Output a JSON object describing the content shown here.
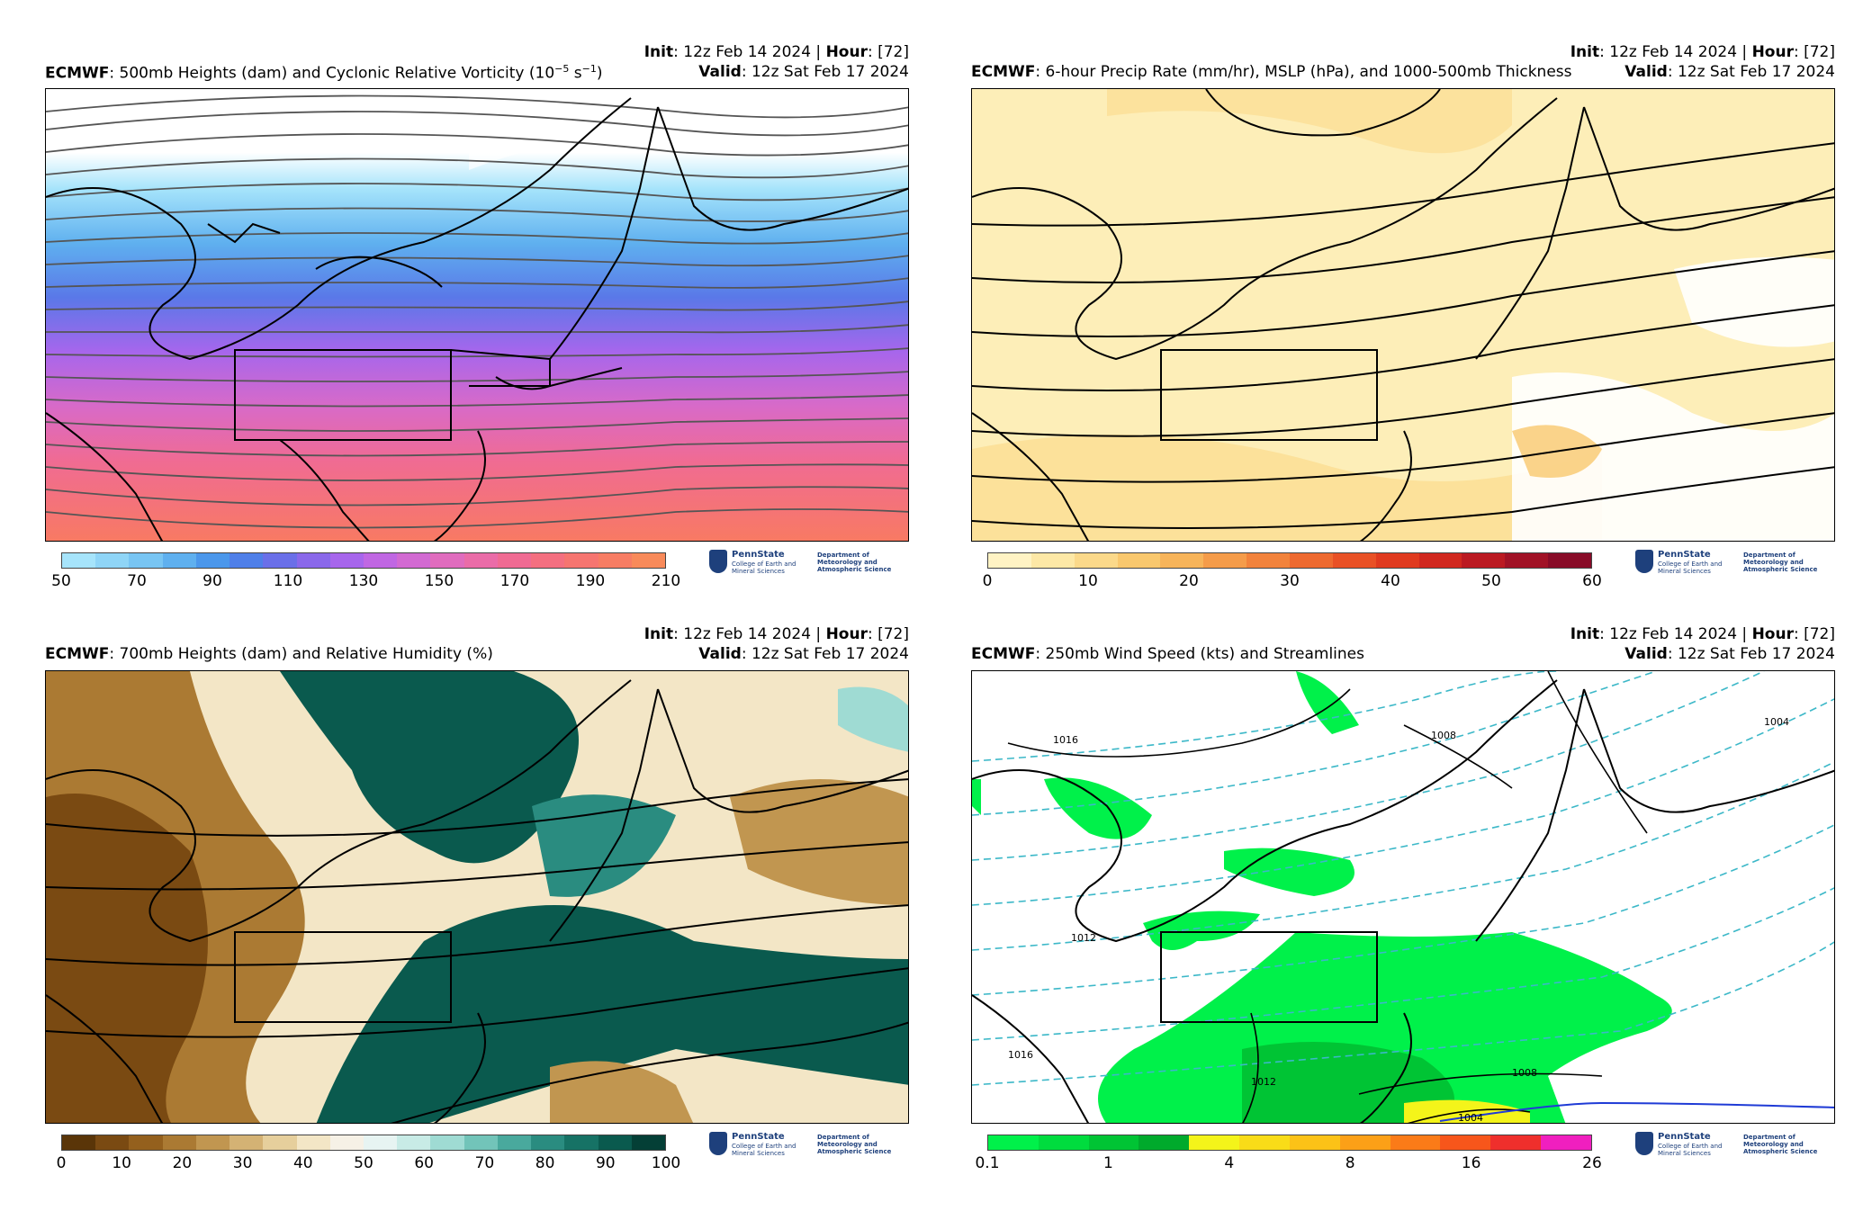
{
  "panels": [
    {
      "model": "ECMWF",
      "title": ": 500mb Heights (dam) and Cyclonic Relative Vorticity (10",
      "title_sup": "−5",
      "title_tail": " s",
      "title_sup2": "−1",
      "title_end": ")",
      "init_label": "Init",
      "init_value": ": 12z Feb 14 2024 | ",
      "hour_label": "Hour",
      "hour_value": ": [72]",
      "valid_label": "Valid",
      "valid_value": ": 12z Sat Feb 17 2024",
      "colorbar": {
        "colors": [
          "#a6e4fb",
          "#8fd5f7",
          "#78c5f3",
          "#5fb0ef",
          "#4b97eb",
          "#4f7fe8",
          "#6a6fe8",
          "#8a68ea",
          "#a766ec",
          "#c067e3",
          "#d26ad2",
          "#e06cbe",
          "#ea6ca8",
          "#f06b93",
          "#f46f80",
          "#f67570",
          "#f77d64",
          "#f88a5a"
        ],
        "ticks": [
          "50",
          "70",
          "90",
          "110",
          "130",
          "150",
          "170",
          "190",
          "210"
        ]
      }
    },
    {
      "model": "ECMWF",
      "title": ": 6-hour Precip Rate (mm/hr), MSLP (hPa), and 1000-500mb Thickness",
      "init_label": "Init",
      "init_value": ": 12z Feb 14 2024 | ",
      "hour_label": "Hour",
      "hour_value": ": [72]",
      "valid_label": "Valid",
      "valid_value": ": 12z Sat Feb 17 2024",
      "colorbar": {
        "colors": [
          "#fff3c4",
          "#fde8a6",
          "#fbd98a",
          "#f9c86e",
          "#f7b45a",
          "#f59c4a",
          "#f2833c",
          "#ee6a30",
          "#e95126",
          "#e03a1f",
          "#d1281f",
          "#bb1a22",
          "#a11226",
          "#880b27"
        ],
        "ticks": [
          "0",
          "10",
          "20",
          "30",
          "40",
          "50",
          "60"
        ]
      }
    },
    {
      "model": "ECMWF",
      "title": ": 700mb Heights (dam) and Relative Humidity (%)",
      "init_label": "Init",
      "init_value": ": 12z Feb 14 2024 | ",
      "hour_label": "Hour",
      "hour_value": ": [72]",
      "valid_label": "Valid",
      "valid_value": ": 12z Sat Feb 17 2024",
      "colorbar": {
        "colors": [
          "#5a3508",
          "#7a4a12",
          "#94601d",
          "#ab7a33",
          "#c19650",
          "#d4b274",
          "#e6cf9c",
          "#f3e6c6",
          "#f6f1e6",
          "#e7f4f2",
          "#c8ebe6",
          "#9fdbd3",
          "#72c4b9",
          "#49a99d",
          "#2a8c80",
          "#167265",
          "#0a5a4e",
          "#043f36"
        ],
        "ticks": [
          "0",
          "10",
          "20",
          "30",
          "40",
          "50",
          "60",
          "70",
          "80",
          "90",
          "100"
        ]
      }
    },
    {
      "model": "ECMWF",
      "title": ": 250mb Wind Speed (kts) and Streamlines",
      "init_label": "Init",
      "init_value": ": 12z Feb 14 2024 | ",
      "hour_label": "Hour",
      "hour_value": ": [72]",
      "valid_label": "Valid",
      "valid_value": ": 12z Sat Feb 17 2024",
      "colorbar": {
        "colors": [
          "#00f14a",
          "#00dc3e",
          "#00c434",
          "#00aa2c",
          "#f4f41a",
          "#f9dc18",
          "#fcc217",
          "#fca017",
          "#fb7b18",
          "#f7561b",
          "#ef2f2c",
          "#f01fbf"
        ],
        "ticks": [
          "0.1",
          "1",
          "4",
          "8",
          "16",
          "26"
        ]
      },
      "contour_labels": [
        "1016",
        "1008",
        "1004",
        "1012",
        "1008",
        "1004",
        "1012",
        "1016"
      ]
    }
  ],
  "logo": {
    "university": "PennState",
    "college": "College of Earth and Mineral Sciences",
    "department": "Department of Meteorology and Atmospheric Science"
  }
}
